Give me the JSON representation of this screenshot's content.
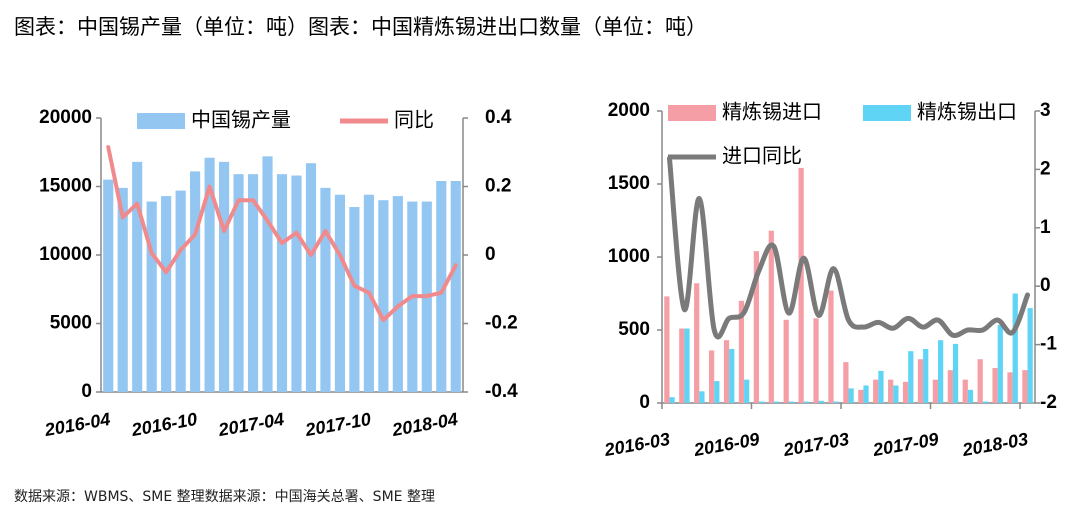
{
  "chart_data": [
    {
      "type": "combo",
      "title": "图表：中国锡产量（单位：吨）",
      "source": "数据来源：WBMS、SME 整理",
      "categories": [
        "2016-04",
        null,
        null,
        null,
        null,
        null,
        "2016-10",
        null,
        null,
        null,
        null,
        null,
        "2017-04",
        null,
        null,
        null,
        null,
        null,
        "2017-10",
        null,
        null,
        null,
        null,
        null,
        "2018-04"
      ],
      "series": [
        {
          "name": "中国锡产量",
          "type": "bar",
          "color": "#93c6f0",
          "values": [
            15500,
            14900,
            16800,
            13900,
            14300,
            14700,
            16100,
            17100,
            16800,
            15900,
            15900,
            17200,
            15900,
            15800,
            16700,
            14900,
            14400,
            13500,
            14400,
            14000,
            14300,
            13900,
            13900,
            15400,
            15400
          ]
        },
        {
          "name": "同比",
          "type": "line",
          "axis": "y2",
          "color": "#f08a8c",
          "values": [
            0.315,
            0.11,
            0.15,
            0.005,
            -0.05,
            0.015,
            0.06,
            0.2,
            0.07,
            0.16,
            0.16,
            0.1,
            0.035,
            0.065,
            0,
            0.07,
            0,
            -0.09,
            -0.11,
            -0.19,
            -0.15,
            -0.12,
            -0.12,
            -0.11,
            -0.03
          ]
        }
      ],
      "ylim": [
        0,
        20000
      ],
      "yticks": [
        0,
        5000,
        10000,
        15000,
        20000
      ],
      "y2lim": [
        -0.4,
        0.4
      ],
      "y2ticks": [
        -0.4,
        -0.2,
        0,
        0.2,
        0.4
      ],
      "smooth": false
    },
    {
      "type": "combo",
      "title": "图表：中国精炼锡进出口数量（单位：吨）",
      "source": "数据来源：中国海关总署、SME 整理",
      "categories": [
        "2016-03",
        null,
        null,
        null,
        null,
        null,
        "2016-09",
        null,
        null,
        null,
        null,
        null,
        "2017-03",
        null,
        null,
        null,
        null,
        null,
        "2017-09",
        null,
        null,
        null,
        null,
        null,
        "2018-03"
      ],
      "series": [
        {
          "name": "精炼锡进口",
          "type": "bar",
          "color": "#f59ea6",
          "values": [
            730,
            510,
            820,
            360,
            430,
            700,
            1040,
            1180,
            570,
            1610,
            580,
            770,
            280,
            90,
            160,
            160,
            145,
            300,
            160,
            225,
            160,
            300,
            240,
            210,
            225
          ]
        },
        {
          "name": "精炼锡出口",
          "type": "bar",
          "color": "#5fd4f4",
          "values": [
            40,
            510,
            80,
            150,
            370,
            160,
            10,
            10,
            10,
            10,
            15,
            10,
            100,
            120,
            220,
            120,
            355,
            370,
            430,
            405,
            90,
            10,
            535,
            750,
            650
          ]
        },
        {
          "name": "进口同比",
          "type": "line",
          "axis": "y2",
          "color": "#7a7a7a",
          "values": [
            2.19,
            -0.4,
            1.5,
            -0.75,
            -0.55,
            -0.45,
            0.27,
            0.68,
            -0.46,
            0.48,
            -0.5,
            0.3,
            -0.58,
            -0.7,
            -0.62,
            -0.72,
            -0.55,
            -0.7,
            -0.58,
            -0.84,
            -0.75,
            -0.75,
            -0.58,
            -0.79,
            -0.15
          ]
        }
      ],
      "ylim": [
        0,
        2000
      ],
      "yticks": [
        0,
        500,
        1000,
        1500,
        2000
      ],
      "y2lim": [
        -2,
        3
      ],
      "y2ticks": [
        -2,
        -1,
        0,
        1,
        2,
        3
      ],
      "smooth": true
    }
  ]
}
